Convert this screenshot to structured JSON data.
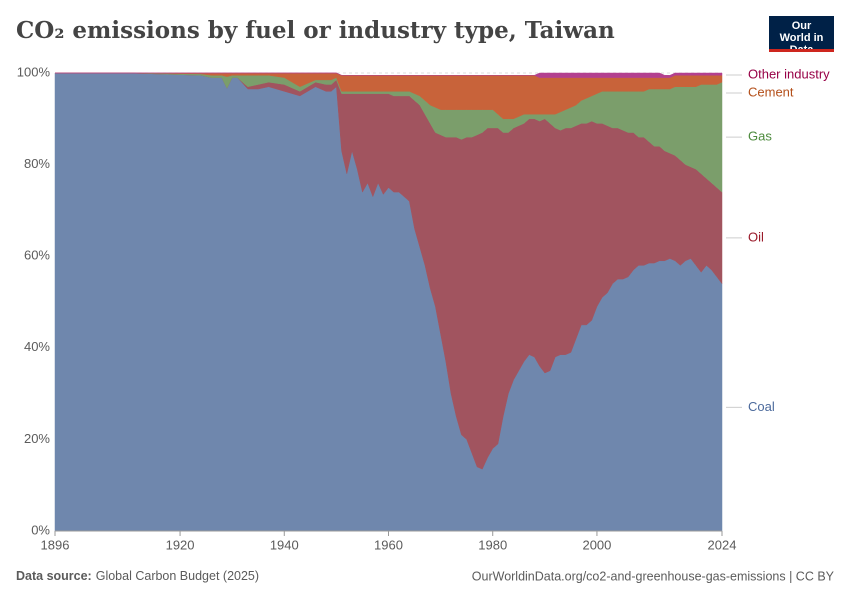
{
  "chart_data": {
    "type": "stacked_area",
    "title": "CO₂ emissions by fuel or industry type, Taiwan",
    "logo": "Our World in Data",
    "source_label": "Data source:",
    "source": "Global Carbon Budget (2025)",
    "url": "OurWorldinData.org/co2-and-greenhouse-gas-emissions | CC BY",
    "x": [
      1896,
      1910,
      1924,
      1926,
      1928,
      1929,
      1930,
      1931,
      1933,
      1935,
      1937,
      1940,
      1943,
      1946,
      1948,
      1949,
      1950,
      1951,
      1952,
      1953,
      1954,
      1955,
      1956,
      1957,
      1958,
      1959,
      1960,
      1961,
      1962,
      1963,
      1964,
      1965,
      1966,
      1967,
      1968,
      1969,
      1970,
      1971,
      1972,
      1973,
      1974,
      1975,
      1976,
      1977,
      1978,
      1979,
      1980,
      1981,
      1982,
      1983,
      1984,
      1985,
      1986,
      1987,
      1988,
      1989,
      1990,
      1991,
      1992,
      1993,
      1994,
      1995,
      1996,
      1997,
      1998,
      1999,
      2000,
      2001,
      2002,
      2003,
      2004,
      2005,
      2006,
      2007,
      2008,
      2009,
      2010,
      2011,
      2012,
      2013,
      2014,
      2015,
      2016,
      2017,
      2018,
      2019,
      2020,
      2021,
      2022,
      2023,
      2024
    ],
    "xlim": [
      1896,
      2024
    ],
    "xticks": [
      1896,
      1920,
      1940,
      1960,
      1980,
      2000,
      2024
    ],
    "ylim": [
      0,
      100
    ],
    "yticks": [
      {
        "value": 0,
        "label": "0%"
      },
      {
        "value": 20,
        "label": "20%"
      },
      {
        "value": 40,
        "label": "40%"
      },
      {
        "value": 60,
        "label": "60%"
      },
      {
        "value": 80,
        "label": "80%"
      },
      {
        "value": 100,
        "label": "100%"
      }
    ],
    "grid": true,
    "series": [
      {
        "name": "Coal",
        "color": "#6f87ad",
        "label_color": "#4c6a9c",
        "values": [
          100,
          100,
          99.5,
          99,
          99,
          96.7,
          99,
          99,
          96.5,
          96.5,
          97,
          96,
          95,
          97,
          96,
          96,
          97,
          83,
          78,
          83,
          79,
          74,
          76,
          73,
          76,
          73.5,
          75,
          74,
          74,
          73,
          72,
          66,
          62,
          58,
          53,
          49,
          43,
          37,
          30,
          25,
          21,
          20,
          17,
          14,
          13.5,
          16,
          18,
          19,
          25,
          30,
          33,
          35,
          37,
          38.5,
          38,
          36,
          34.5,
          35,
          38,
          38.5,
          38.5,
          39,
          42,
          45,
          45,
          46,
          49,
          51,
          52,
          54,
          55,
          55,
          55.5,
          57,
          58,
          58,
          58.5,
          58.5,
          59,
          59,
          59.5,
          59,
          58,
          59,
          59.5,
          58,
          56.5,
          58,
          57,
          55.5,
          54
        ]
      },
      {
        "name": "Oil",
        "color": "#a1545f",
        "label_color": "#9a1a2a",
        "values": [
          0,
          0,
          0,
          0,
          0,
          0,
          0,
          0,
          0.5,
          1,
          1,
          1.5,
          1,
          1,
          1.5,
          1.5,
          1.5,
          12.5,
          17.5,
          12.5,
          16.5,
          21.5,
          19.5,
          22.5,
          19.5,
          22,
          20.5,
          21,
          21,
          22,
          23,
          28,
          31,
          33,
          36,
          38,
          43.5,
          49,
          56,
          61,
          64.5,
          66,
          69,
          72.5,
          73.5,
          72,
          70,
          69,
          62,
          57,
          55,
          53.5,
          52,
          51.5,
          52,
          53.5,
          55.5,
          54,
          50,
          49,
          49.5,
          49,
          46.5,
          44,
          44,
          43.5,
          40,
          38,
          36.5,
          34,
          33,
          32.5,
          31.5,
          30,
          28,
          28,
          26.5,
          25.5,
          25,
          24,
          23,
          23,
          23,
          21,
          20,
          21,
          21.5,
          19,
          19,
          19.5,
          20
        ]
      },
      {
        "name": "Gas",
        "color": "#7b9e6b",
        "label_color": "#4c8a3c",
        "values": [
          0,
          0,
          0.3,
          0.5,
          0.5,
          2.5,
          0.5,
          0.5,
          2.5,
          2,
          1.5,
          1.5,
          1,
          0.5,
          1,
          1,
          0.5,
          0.5,
          0.5,
          0.5,
          0.5,
          0.5,
          0.5,
          0.5,
          0.5,
          0.5,
          0.5,
          1,
          1,
          1,
          1,
          1.5,
          2,
          3,
          4,
          5.5,
          5.5,
          6,
          6,
          6,
          6.5,
          6,
          6,
          5.5,
          5,
          4,
          4,
          3,
          3,
          3,
          2,
          2,
          2,
          1,
          1,
          1.5,
          1,
          2,
          3,
          4,
          4,
          4.5,
          4.5,
          5,
          5.5,
          5.5,
          6.5,
          7,
          7.5,
          8,
          8,
          8.5,
          9,
          9,
          10,
          10,
          11.5,
          12.5,
          12.5,
          13.5,
          14,
          15,
          16,
          17,
          17.5,
          18,
          19.5,
          20.5,
          21.5,
          22.5,
          24
        ]
      },
      {
        "name": "Cement",
        "color": "#c8633a",
        "label_color": "#b4501b",
        "values": [
          0,
          0,
          0.2,
          0.5,
          0.5,
          0.8,
          0.5,
          0.5,
          0.5,
          0.5,
          0.5,
          1,
          3,
          1.5,
          1.5,
          1.5,
          1,
          3.5,
          3.5,
          3.5,
          3.5,
          3.5,
          3.5,
          3.5,
          3.5,
          3.5,
          3.5,
          3.5,
          3.5,
          3.5,
          3.5,
          4,
          4.5,
          5.5,
          6.5,
          7,
          7.5,
          7.5,
          7.5,
          7.5,
          7.5,
          7.5,
          7.5,
          7.5,
          7.5,
          7.5,
          7.5,
          8.5,
          9.5,
          9.5,
          9.5,
          9,
          8.5,
          8.5,
          8.5,
          8,
          8,
          8,
          8,
          7.5,
          7,
          6.5,
          6,
          5,
          4.5,
          4,
          3.5,
          3,
          3,
          3,
          3,
          3,
          3,
          3,
          3,
          3,
          2.5,
          2.5,
          2.5,
          2.5,
          2.5,
          2.5,
          2.5,
          2.5,
          2.5,
          2.5,
          2,
          2,
          2,
          2,
          1.5
        ]
      },
      {
        "name": "Other industry",
        "color": "#b3408f",
        "label_color": "#970046",
        "values": [
          0,
          0,
          0,
          0,
          0,
          0,
          0,
          0,
          0,
          0,
          0,
          0,
          0,
          0,
          0,
          0,
          0,
          0,
          0,
          0,
          0,
          0,
          0,
          0,
          0,
          0,
          0,
          0,
          0,
          0,
          0,
          0,
          0,
          0,
          0,
          0,
          0,
          0,
          0,
          0,
          0,
          0,
          0,
          0,
          0,
          0,
          0,
          0,
          0,
          0,
          0,
          0,
          0,
          0,
          0,
          1,
          1,
          1,
          1,
          1,
          1,
          1,
          1,
          1,
          1,
          1,
          1,
          1,
          1,
          1,
          1,
          1,
          1,
          1,
          1,
          1,
          1,
          1,
          1,
          0.5,
          0.5,
          0.5,
          0.5,
          0.5,
          0.5,
          0.5,
          0.5,
          0.5,
          0.5,
          0.5,
          0.5
        ]
      }
    ]
  }
}
